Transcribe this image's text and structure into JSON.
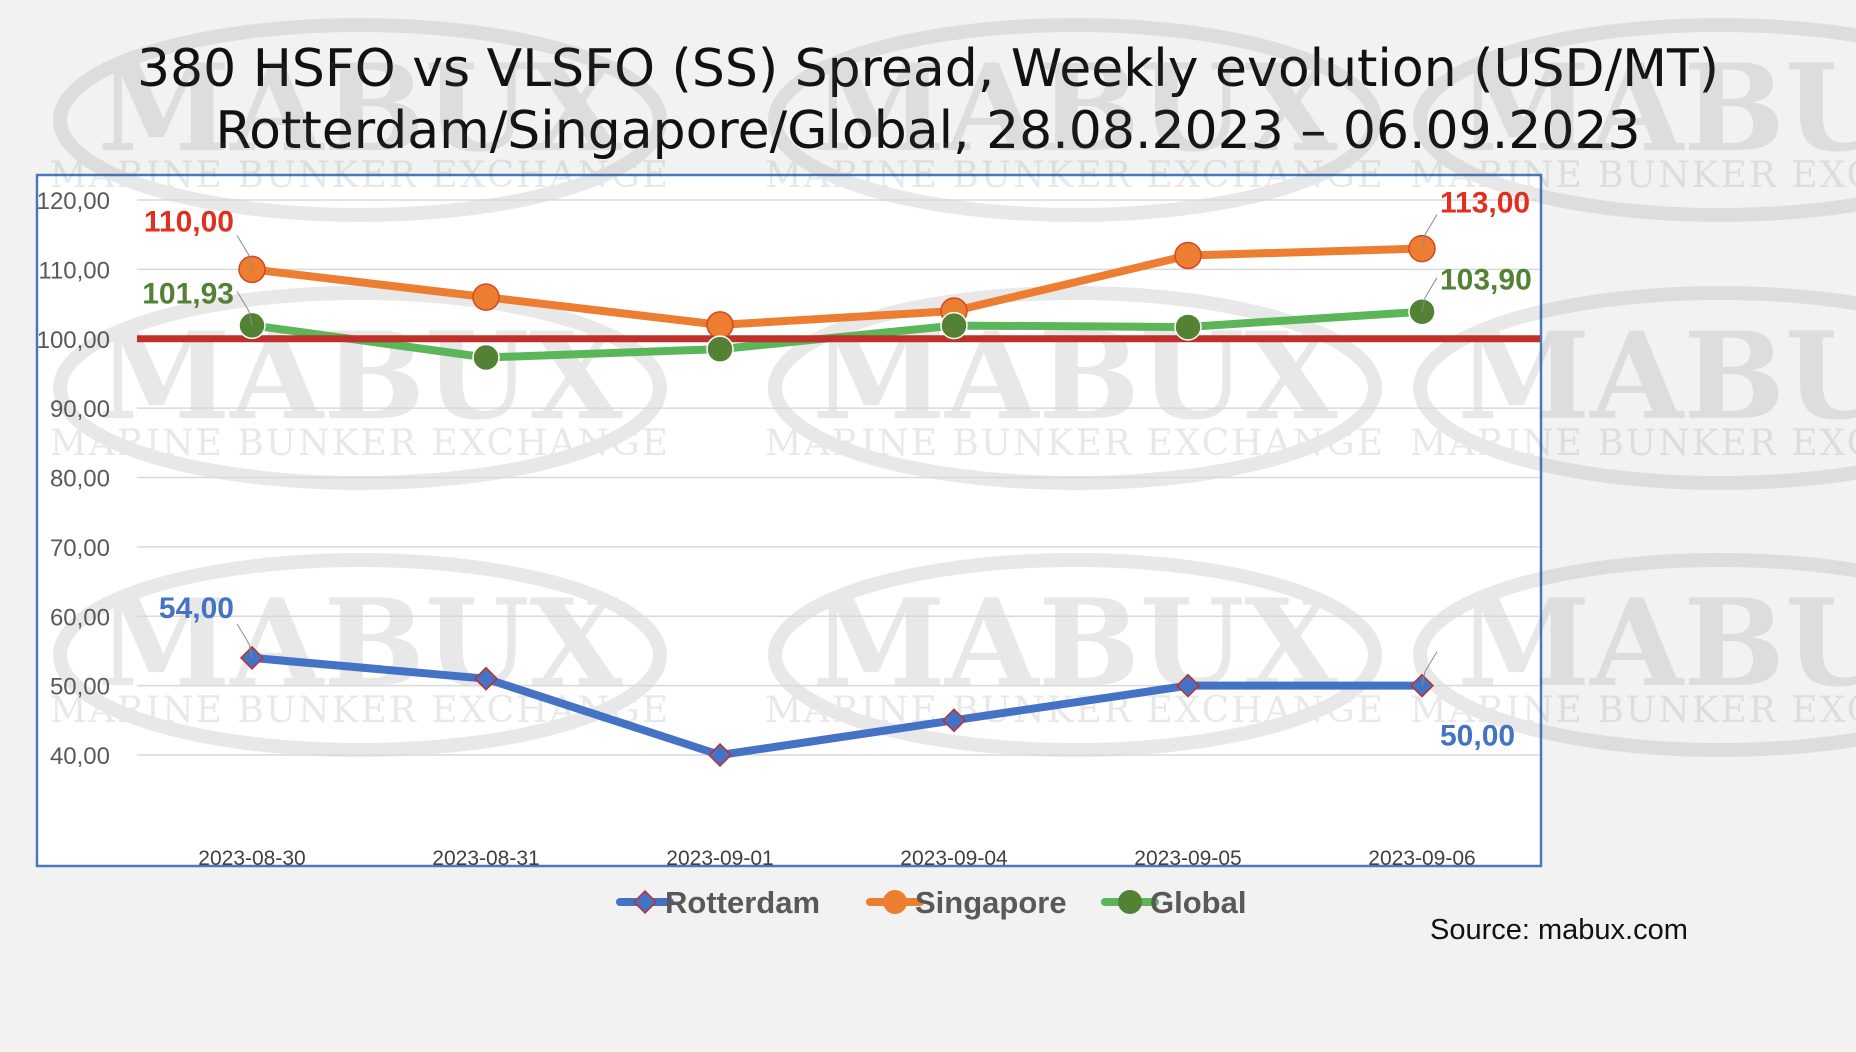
{
  "chart_data": {
    "type": "line",
    "title_line1": "380 HSFO vs VLSFO (SS) Spread, Weekly evolution (USD/MT)",
    "title_line2": "Rotterdam/Singapore/Global, 28.08.2023 – 06.09.2023",
    "xlabel": "",
    "ylabel": "",
    "categories": [
      "2023-08-30",
      "2023-08-31",
      "2023-09-01",
      "2023-09-04",
      "2023-09-05",
      "2023-09-06"
    ],
    "ylim": [
      40,
      120
    ],
    "yticks": [
      "40,00",
      "50,00",
      "60,00",
      "70,00",
      "80,00",
      "90,00",
      "100,00",
      "110,00",
      "120,00"
    ],
    "reference_line": {
      "value": 100,
      "color": "#c0302a"
    },
    "grid": true,
    "legend_position": "bottom",
    "series": [
      {
        "name": "Rotterdam",
        "color": "#4472c4",
        "marker": "diamond",
        "values": [
          54,
          51,
          40,
          45,
          50,
          50
        ],
        "labels": [
          {
            "index": 0,
            "text": "54,00"
          },
          {
            "index": 5,
            "text": "50,00"
          }
        ]
      },
      {
        "name": "Singapore",
        "color": "#ed7d31",
        "marker": "circle",
        "values": [
          110,
          106,
          102,
          104,
          112,
          113
        ],
        "labels": [
          {
            "index": 0,
            "text": "110,00"
          },
          {
            "index": 5,
            "text": "113,00"
          }
        ],
        "label_color": "#e03020"
      },
      {
        "name": "Global",
        "color": "#5bb65a",
        "marker": "circle",
        "marker_color": "#548235",
        "values": [
          101.93,
          97.3,
          98.5,
          101.9,
          101.7,
          103.9
        ],
        "labels": [
          {
            "index": 0,
            "text": "101,93"
          },
          {
            "index": 5,
            "text": "103,90"
          }
        ],
        "label_color": "#548235"
      }
    ],
    "source": "Source: mabux.com",
    "watermark": {
      "brand": "MABUX",
      "tagline": "MARINE BUNKER EXCHANGE"
    }
  }
}
